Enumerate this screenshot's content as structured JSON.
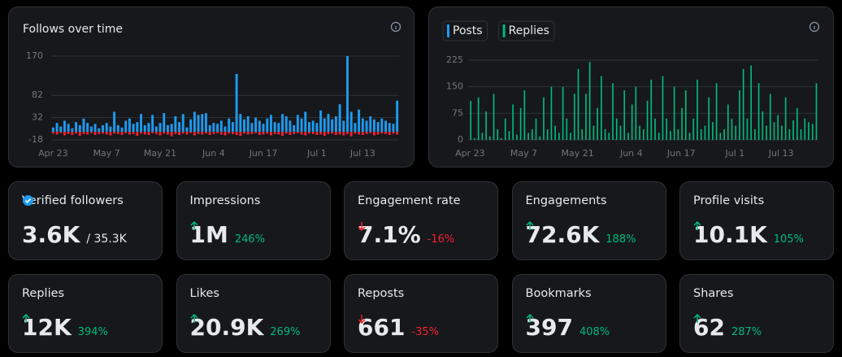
{
  "chart_data": [
    {
      "type": "bar",
      "title": "Follows over time",
      "barmode": "relative",
      "grid": true,
      "categories": [
        "Apr 23",
        null,
        null,
        null,
        null,
        null,
        null,
        null,
        null,
        null,
        null,
        null,
        null,
        null,
        "May 7",
        null,
        null,
        null,
        null,
        null,
        null,
        null,
        null,
        null,
        null,
        null,
        null,
        null,
        "May 21",
        null,
        null,
        null,
        null,
        null,
        null,
        null,
        null,
        null,
        null,
        null,
        null,
        null,
        "Jun 4",
        null,
        null,
        null,
        null,
        null,
        null,
        null,
        null,
        null,
        null,
        null,
        null,
        "Jun 17",
        null,
        null,
        null,
        null,
        null,
        null,
        null,
        null,
        null,
        null,
        null,
        null,
        null,
        "Jul 1",
        null,
        null,
        null,
        null,
        null,
        null,
        null,
        null,
        null,
        null,
        null,
        "Jul 13",
        null,
        null,
        null,
        null,
        null,
        null,
        null,
        null,
        null
      ],
      "series": [
        {
          "color": "#1d9bf0",
          "values": [
            10,
            20,
            12,
            25,
            18,
            8,
            22,
            15,
            30,
            20,
            12,
            18,
            8,
            15,
            20,
            12,
            45,
            15,
            10,
            25,
            30,
            18,
            22,
            40,
            15,
            20,
            38,
            12,
            20,
            42,
            15,
            18,
            35,
            22,
            40,
            10,
            28,
            45,
            38,
            40,
            42,
            15,
            20,
            18,
            25,
            12,
            30,
            22,
            130,
            40,
            28,
            35,
            20,
            32,
            25,
            18,
            30,
            38,
            22,
            20,
            40,
            35,
            25,
            15,
            38,
            30,
            45,
            22,
            25,
            20,
            48,
            30,
            40,
            28,
            35,
            62,
            25,
            170,
            45,
            20,
            50,
            30,
            25,
            35,
            28,
            22,
            30,
            25,
            20,
            18,
            70
          ]
        },
        {
          "color": "#f4212e",
          "values": [
            -4,
            -6,
            -3,
            -8,
            -5,
            -7,
            -4,
            -9,
            -5,
            -6,
            -3,
            -7,
            -5,
            -4,
            -6,
            -8,
            -4,
            -5,
            -7,
            -3,
            -6,
            -5,
            -9,
            -4,
            -6,
            -7,
            -3,
            -5,
            -8,
            -4,
            -6,
            -10,
            -5,
            -7,
            -4,
            -6,
            -3,
            -8,
            -5,
            -6,
            -4,
            -7,
            -5,
            -3,
            -6,
            -8,
            -4,
            -5,
            -7,
            -9,
            -4,
            -6,
            -5,
            -3,
            -7,
            -6,
            -4,
            -8,
            -5,
            -6,
            -9,
            -4,
            -7,
            -5,
            -3,
            -6,
            -8,
            -4,
            -5,
            -7,
            -6,
            -9,
            -5,
            -4,
            -7,
            -6,
            -8,
            -5,
            -10,
            -4,
            -6,
            -7,
            -5,
            -3,
            -8,
            -6,
            -4,
            -5,
            -7,
            -4,
            -6
          ]
        }
      ],
      "ylim": [
        -18,
        170
      ],
      "yticks": [
        -18,
        32,
        82,
        170
      ]
    },
    {
      "type": "bar",
      "barmode": "group",
      "grid": true,
      "legend": "top-left",
      "categories": [
        "Apr 23",
        null,
        null,
        null,
        null,
        null,
        null,
        null,
        null,
        null,
        null,
        null,
        null,
        null,
        "May 7",
        null,
        null,
        null,
        null,
        null,
        null,
        null,
        null,
        null,
        null,
        null,
        null,
        null,
        "May 21",
        null,
        null,
        null,
        null,
        null,
        null,
        null,
        null,
        null,
        null,
        null,
        null,
        null,
        "Jun 4",
        null,
        null,
        null,
        null,
        null,
        null,
        null,
        null,
        null,
        null,
        null,
        null,
        "Jun 17",
        null,
        null,
        null,
        null,
        null,
        null,
        null,
        null,
        null,
        null,
        null,
        null,
        null,
        "Jul 1",
        null,
        null,
        null,
        null,
        null,
        null,
        null,
        null,
        null,
        null,
        null,
        "Jul 13",
        null,
        null,
        null,
        null,
        null,
        null,
        null,
        null,
        null
      ],
      "series": [
        {
          "name": "Posts",
          "color": "#1d9bf0",
          "values": [
            0,
            0,
            1,
            0,
            0,
            0,
            0,
            0,
            1,
            0,
            0,
            0,
            0,
            0,
            0,
            0,
            0,
            1,
            0,
            0,
            0,
            0,
            0,
            0,
            0,
            1,
            0,
            0,
            0,
            0,
            0,
            1,
            0,
            0,
            0,
            0,
            0,
            0,
            1,
            0,
            0,
            0,
            0,
            0,
            0,
            0,
            0,
            1,
            0,
            0,
            0,
            0,
            0,
            0,
            0,
            0,
            1,
            0,
            0,
            0,
            0,
            0,
            0,
            0,
            0,
            0,
            1,
            0,
            0,
            0,
            0,
            0,
            0,
            1,
            0,
            0,
            0,
            0,
            0,
            0,
            0,
            0,
            1,
            0,
            0,
            0,
            0,
            0,
            0,
            0,
            0
          ]
        },
        {
          "name": "Replies",
          "color": "#00ba7c",
          "values": [
            110,
            5,
            120,
            20,
            80,
            10,
            130,
            30,
            5,
            60,
            25,
            100,
            15,
            90,
            140,
            20,
            30,
            60,
            10,
            120,
            30,
            150,
            40,
            20,
            150,
            60,
            20,
            130,
            200,
            30,
            130,
            220,
            40,
            90,
            180,
            30,
            20,
            160,
            60,
            40,
            140,
            20,
            100,
            150,
            40,
            30,
            110,
            170,
            60,
            20,
            180,
            60,
            25,
            150,
            30,
            90,
            140,
            20,
            60,
            170,
            30,
            40,
            120,
            50,
            160,
            20,
            30,
            100,
            60,
            40,
            140,
            200,
            60,
            210,
            30,
            160,
            80,
            40,
            130,
            50,
            70,
            40,
            120,
            30,
            55,
            90,
            30,
            60,
            50,
            45,
            160
          ]
        }
      ],
      "ylim": [
        0,
        225
      ],
      "yticks": [
        0,
        75,
        150,
        225
      ]
    }
  ],
  "cards": [
    {
      "label": "Verified followers",
      "verified": true,
      "value": "3.6K",
      "total": "/ 35.3K"
    },
    {
      "label": "Impressions",
      "value": "1M",
      "change": "246%",
      "trend": "up"
    },
    {
      "label": "Engagement rate",
      "value": "7.1%",
      "change": "-16%",
      "trend": "down"
    },
    {
      "label": "Engagements",
      "value": "72.6K",
      "change": "188%",
      "trend": "up"
    },
    {
      "label": "Profile visits",
      "value": "10.1K",
      "change": "105%",
      "trend": "up"
    },
    {
      "label": "Replies",
      "value": "12K",
      "change": "394%",
      "trend": "up"
    },
    {
      "label": "Likes",
      "value": "20.9K",
      "change": "269%",
      "trend": "up"
    },
    {
      "label": "Reposts",
      "value": "661",
      "change": "-35%",
      "trend": "down"
    },
    {
      "label": "Bookmarks",
      "value": "397",
      "change": "408%",
      "trend": "up"
    },
    {
      "label": "Shares",
      "value": "62",
      "change": "287%",
      "trend": "up"
    }
  ]
}
